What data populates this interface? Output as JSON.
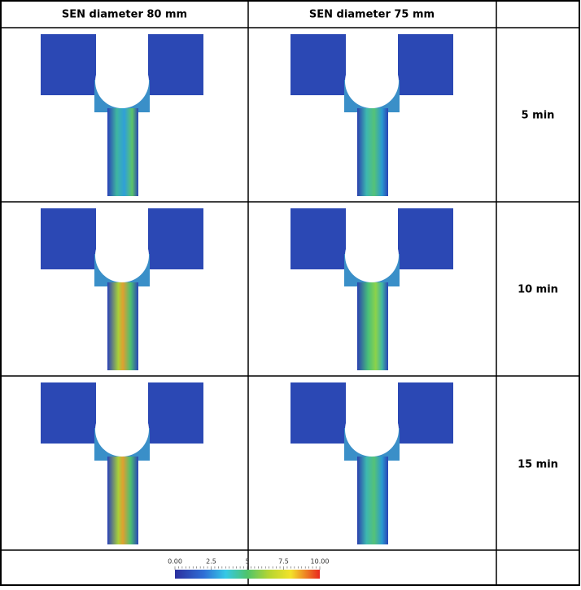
{
  "header": {
    "columns": [
      "SEN diameter 80 mm",
      "SEN diameter 75 mm"
    ]
  },
  "rows": [
    {
      "label": "5 min"
    },
    {
      "label": "10 min"
    },
    {
      "label": "15 min"
    }
  ],
  "colorbar": {
    "ticks": [
      "0.00",
      "2.5",
      "5",
      "7.5",
      "10.00"
    ]
  }
}
